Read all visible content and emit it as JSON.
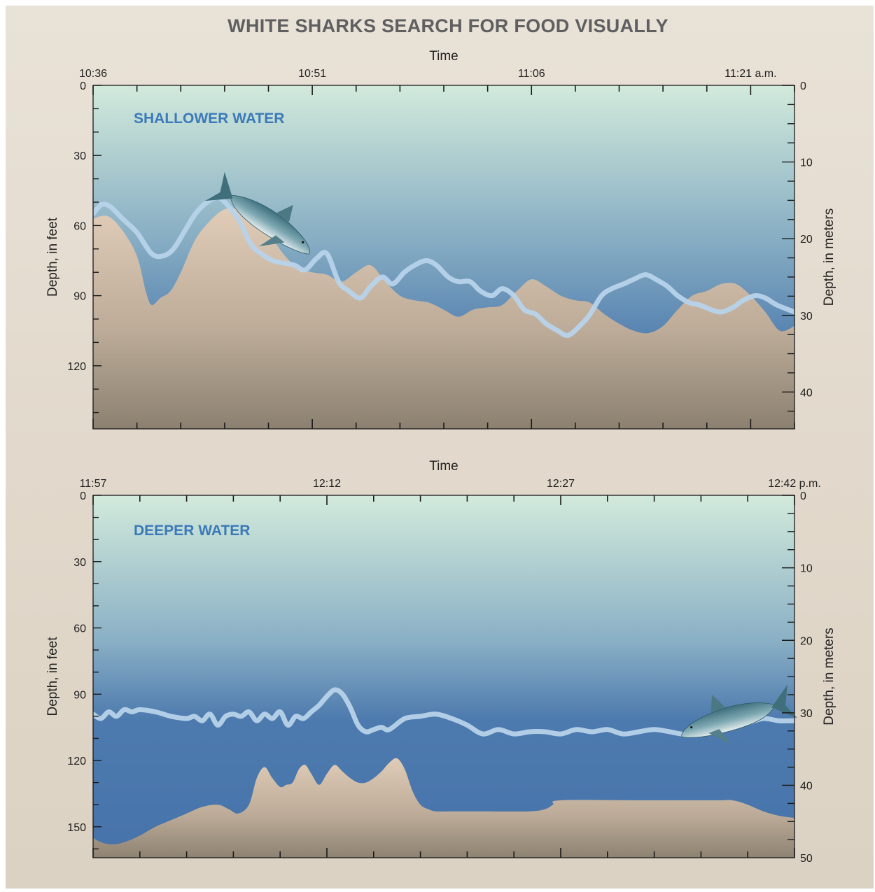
{
  "title": "WHITE SHARKS SEARCH FOR FOOD VISUALLY",
  "colors": {
    "water_top": "#cfe8d8",
    "water_mid": "#8bb0c4",
    "water_deep": "#4a78ad",
    "seafloor_top": "#d8c7b4",
    "seafloor_bottom": "#8c8170",
    "shark_track": "#b7d3ea",
    "region_label": "#3b79b8"
  },
  "icons": [
    "shark-icon"
  ],
  "chart_data": [
    {
      "type": "area",
      "label": "SHALLOWER WATER",
      "xlabel": "Time",
      "x_unit": "minutes after 10:36 a.m.",
      "x_ticks": [
        "10:36",
        "10:51",
        "11:06",
        "11:21 a.m."
      ],
      "x_tick_minutes": [
        0,
        15,
        30,
        45
      ],
      "xlim": [
        0,
        48
      ],
      "ylabel_left": "Depth, in feet",
      "ylabel_right": "Depth, in meters",
      "ylim_feet": [
        0,
        147
      ],
      "y_ticks_left": [
        "0",
        "30",
        "60",
        "90",
        "120"
      ],
      "y_ticks_right": [
        "0",
        "10",
        "20",
        "30",
        "40"
      ],
      "grid": false,
      "series": [
        {
          "name": "Shark track",
          "role": "track",
          "x": [
            0,
            0.6,
            1.2,
            2,
            3,
            4,
            4.8,
            5.5,
            6.3,
            7,
            7.8,
            8.6,
            9.3,
            10,
            10.8,
            11.5,
            12.3,
            13,
            13.8,
            14.5,
            15.3,
            16,
            16.8,
            17.5,
            18.3,
            19,
            19.8,
            20.5,
            21.3,
            22,
            22.8,
            23.5,
            24.3,
            25,
            25.8,
            26.5,
            27.3,
            28,
            28.8,
            29.5,
            30.3,
            31,
            31.8,
            32.5,
            33.3,
            34,
            34.8,
            35.5,
            36.3,
            37,
            37.8,
            38.5,
            39.3,
            40,
            40.8,
            41.5,
            42.3,
            43,
            43.8,
            44.5,
            45.3,
            46,
            46.8,
            48
          ],
          "values": [
            55,
            51,
            52,
            57,
            63,
            72,
            73,
            70,
            62,
            55,
            50,
            48,
            52,
            58,
            68,
            72,
            75,
            76,
            77,
            79,
            74,
            72,
            84,
            88,
            91,
            86,
            82,
            85,
            80,
            77,
            75,
            77,
            82,
            84,
            84,
            88,
            90,
            87,
            90,
            96,
            98,
            102,
            105,
            107,
            103,
            98,
            90,
            87,
            85,
            83,
            81,
            83,
            86,
            90,
            93,
            94,
            96,
            97,
            95,
            92,
            90,
            91,
            94,
            97
          ]
        },
        {
          "name": "Seafloor",
          "role": "seafloor",
          "x": [
            0,
            1,
            2,
            3,
            3.6,
            4,
            4.6,
            5.3,
            6,
            7,
            8,
            9,
            10,
            11,
            12,
            13,
            14,
            15,
            16,
            17,
            18,
            19,
            20,
            21,
            22,
            23,
            24,
            25,
            26,
            27,
            28,
            29,
            30,
            31,
            32,
            33,
            34,
            35,
            36,
            37,
            38,
            39,
            40,
            41,
            42,
            43,
            44,
            45,
            46,
            47,
            48
          ],
          "values": [
            57,
            56,
            62,
            73,
            88,
            94,
            91,
            88,
            80,
            66,
            58,
            53,
            53,
            56,
            63,
            72,
            78,
            80,
            81,
            84,
            80,
            77,
            84,
            90,
            92,
            93,
            96,
            99,
            96,
            95,
            94,
            88,
            83,
            86,
            90,
            92,
            93,
            98,
            102,
            105,
            106,
            103,
            96,
            90,
            88,
            85,
            85,
            90,
            97,
            105,
            103
          ]
        }
      ],
      "annotations": [
        "shark illustration near 10:45 at ~60 ft"
      ]
    },
    {
      "type": "area",
      "label": "DEEPER WATER",
      "xlabel": "Time",
      "x_unit": "minutes after 11:57 a.m.",
      "x_ticks": [
        "11:57",
        "12:12",
        "12:27",
        "12:42 p.m."
      ],
      "x_tick_minutes": [
        0,
        15,
        30,
        45
      ],
      "xlim": [
        0,
        45
      ],
      "ylabel_left": "Depth, in feet",
      "ylabel_right": "Depth, in meters",
      "ylim_feet": [
        0,
        164
      ],
      "y_ticks_left": [
        "0",
        "30",
        "60",
        "90",
        "120",
        "150"
      ],
      "y_ticks_right": [
        "0",
        "10",
        "20",
        "30",
        "40",
        "50"
      ],
      "grid": false,
      "series": [
        {
          "name": "Shark track",
          "role": "track",
          "x": [
            0,
            0.5,
            1,
            1.5,
            2,
            2.5,
            3,
            4,
            5,
            6,
            6.5,
            7,
            7.5,
            8,
            8.5,
            9,
            9.5,
            10,
            10.5,
            11,
            11.5,
            12,
            12.5,
            13,
            13.5,
            14,
            14.5,
            15,
            15.5,
            16,
            16.5,
            17,
            17.5,
            18,
            18.5,
            19,
            20,
            21,
            22,
            23,
            24,
            25,
            26,
            27,
            28,
            29,
            30,
            31,
            32,
            33,
            34,
            35,
            36,
            37,
            38,
            39,
            40,
            41,
            42,
            43,
            44,
            45
          ],
          "values": [
            99,
            101,
            98,
            100,
            97,
            98,
            97,
            98,
            100,
            101,
            100,
            102,
            99,
            104,
            100,
            99,
            100,
            98,
            102,
            99,
            101,
            98,
            104,
            100,
            101,
            98,
            95,
            91,
            88,
            90,
            96,
            104,
            107,
            106,
            105,
            106,
            101,
            100,
            99,
            101,
            104,
            108,
            106,
            108,
            107,
            107,
            108,
            106,
            107,
            106,
            108,
            107,
            106,
            107,
            108,
            105,
            106,
            104,
            103,
            101,
            102,
            102
          ]
        },
        {
          "name": "Seafloor",
          "role": "seafloor",
          "x": [
            0,
            0.5,
            1.2,
            2,
            3,
            4,
            5,
            6,
            7,
            8,
            8.7,
            9.3,
            10,
            10.5,
            11,
            11.5,
            12,
            12.4,
            12.8,
            13.2,
            13.6,
            14,
            14.5,
            15,
            15.5,
            16,
            16.5,
            17,
            17.5,
            18,
            18.5,
            19,
            19.5,
            20,
            20.5,
            21,
            21.5,
            22,
            23,
            25,
            28,
            29,
            29.5,
            30,
            35,
            40,
            41,
            42,
            43,
            44,
            45
          ],
          "values": [
            155,
            157,
            158,
            157,
            154,
            150,
            147,
            144,
            141,
            140,
            142,
            144,
            140,
            128,
            123,
            128,
            132,
            131,
            130,
            124,
            122,
            126,
            131,
            126,
            122,
            125,
            128,
            130,
            130,
            128,
            125,
            121,
            119,
            124,
            134,
            140,
            142,
            143,
            143,
            143,
            143,
            142,
            140,
            138,
            138,
            138,
            138,
            140,
            143,
            145,
            146
          ]
        }
      ],
      "annotations": [
        "shark illustration near 12:40 at ~102 ft"
      ]
    }
  ]
}
